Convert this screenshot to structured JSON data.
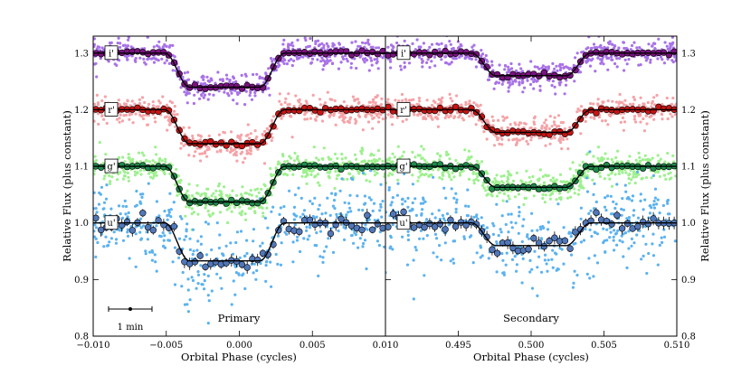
{
  "chart_data": {
    "type": "scatter",
    "ylabel": "Relative Flux (plus constant)",
    "yticks": [
      "0.8",
      "0.9",
      "1.0",
      "1.1",
      "1.2",
      "1.3"
    ],
    "ylim": [
      0.8,
      1.33
    ],
    "panels": [
      {
        "name": "Primary",
        "xlim": [
          -0.01,
          0.01
        ],
        "xticks": [
          "−0.010",
          "−0.005",
          "0.000",
          "0.005",
          "0.010"
        ],
        "xlabel": "Orbital Phase (cycles)",
        "scale_bar": "1 min"
      },
      {
        "name": "Secondary",
        "xlim": [
          0.49,
          0.51
        ],
        "xticks": [
          "0.495",
          "0.500",
          "0.505",
          "0.510"
        ],
        "xlabel": "Orbital Phase (cycles)"
      }
    ],
    "bands": [
      {
        "label": "i'",
        "baseline": 1.3,
        "primary_depth": 0.06,
        "secondary_depth": 0.04,
        "raw_color": "#a872e8",
        "binned_color": "#7a127f",
        "scatter": 0.012
      },
      {
        "label": "r'",
        "baseline": 1.2,
        "primary_depth": 0.06,
        "secondary_depth": 0.04,
        "raw_color": "#f5a3a7",
        "binned_color": "#c81414",
        "scatter": 0.012
      },
      {
        "label": "g'",
        "baseline": 1.1,
        "primary_depth": 0.063,
        "secondary_depth": 0.037,
        "raw_color": "#9ef08f",
        "binned_color": "#1f8a4c",
        "scatter": 0.013
      },
      {
        "label": "u'",
        "baseline": 1.0,
        "primary_depth": 0.067,
        "secondary_depth": 0.04,
        "raw_color": "#5cb2ef",
        "binned_color": "#5277b8",
        "scatter": 0.035
      }
    ],
    "eclipse_shape": {
      "primary_center": -0.001,
      "secondary_center": 0.5,
      "half_width": 0.0041,
      "ingress": 0.0017
    },
    "legend": "none",
    "grid": false
  }
}
